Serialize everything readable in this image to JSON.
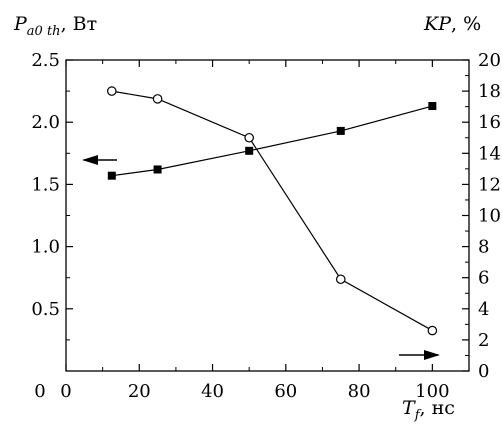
{
  "chart_data": {
    "type": "line",
    "xlabel": {
      "symbol": "T",
      "sub": "f",
      "unit": ", нс"
    },
    "ylabel_left": {
      "symbol": "P",
      "sub": "a0 th",
      "unit": ", Вт"
    },
    "ylabel_right": {
      "symbol": "KP",
      "unit": ", %"
    },
    "xlim": [
      0,
      110
    ],
    "ylim_left": [
      0,
      2.5
    ],
    "ylim_right": [
      0,
      20
    ],
    "x_ticks": [
      0,
      20,
      40,
      60,
      80,
      100
    ],
    "x_tick_labels": [
      "0",
      "20",
      "40",
      "60",
      "80",
      "100"
    ],
    "y_left_ticks": [
      0.5,
      1.0,
      1.5,
      2.0,
      2.5
    ],
    "y_left_tick_labels": [
      "0.5",
      "1.0",
      "1.5",
      "2.0",
      "2.5"
    ],
    "y_right_ticks": [
      0,
      2,
      4,
      6,
      8,
      10,
      12,
      14,
      16,
      18,
      20
    ],
    "y_right_tick_labels": [
      "0",
      "2",
      "4",
      "6",
      "8",
      "10",
      "12",
      "14",
      "16",
      "18",
      "20"
    ],
    "grid": false,
    "series": [
      {
        "axis": "left",
        "marker": "square-filled",
        "x": [
          12.5,
          25,
          50,
          75,
          100
        ],
        "y": [
          1.57,
          1.62,
          1.77,
          1.93,
          2.13
        ]
      },
      {
        "axis": "right",
        "marker": "circle-open",
        "x": [
          12.5,
          25,
          50,
          75,
          100
        ],
        "y": [
          18.0,
          17.5,
          15.0,
          5.9,
          2.6
        ]
      }
    ],
    "annotations": [
      {
        "type": "arrow",
        "direction": "left",
        "meaning": "left-axis series"
      },
      {
        "type": "arrow",
        "direction": "right",
        "meaning": "right-axis series"
      }
    ]
  }
}
